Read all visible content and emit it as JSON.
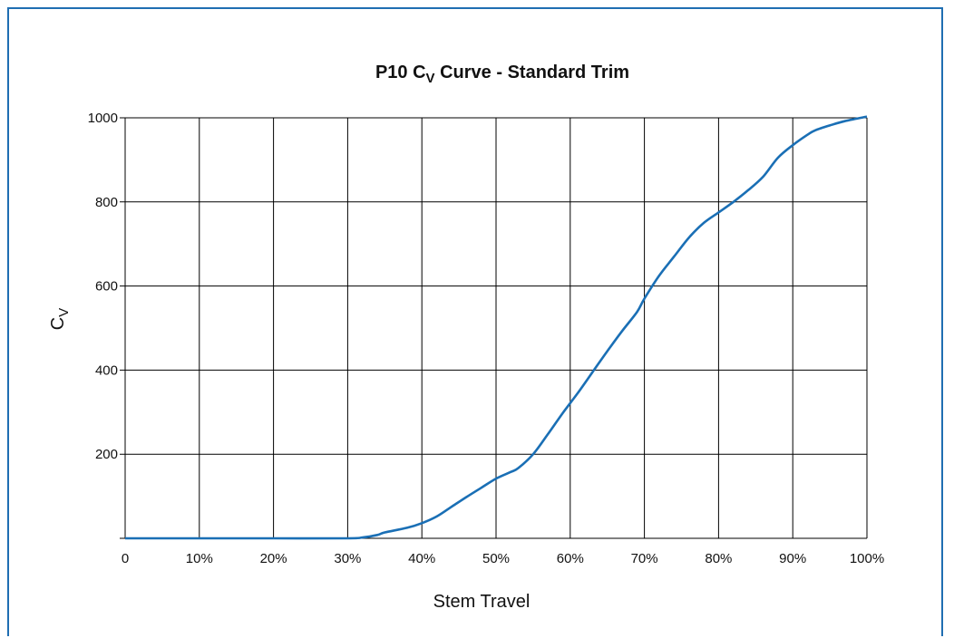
{
  "chart_data": {
    "type": "line",
    "title": "P10 C",
    "title_sub": "V",
    "title_rest": " Curve - Standard Trim",
    "xlabel": "Stem Travel",
    "ylabel": "C",
    "ylabel_sub": "V",
    "x_tick_labels": [
      "0",
      "10%",
      "20%",
      "30%",
      "40%",
      "50%",
      "60%",
      "70%",
      "80%",
      "90%",
      "100%"
    ],
    "y_tick_labels": [
      "200",
      "400",
      "600",
      "800",
      "1000"
    ],
    "xlim": [
      0,
      100
    ],
    "ylim": [
      0,
      1000
    ],
    "grid": true,
    "line_color": "#1a6fb5",
    "series": [
      {
        "x": [
          0,
          10,
          20,
          30,
          32,
          34,
          35,
          38,
          40,
          42,
          44,
          46,
          48,
          50,
          52,
          53,
          55,
          57,
          59,
          61,
          63,
          65,
          67,
          69,
          70,
          72,
          74,
          76,
          78,
          80,
          82,
          84,
          86,
          88,
          90,
          92,
          93,
          95,
          97,
          100
        ],
        "y": [
          0,
          0,
          0,
          0,
          2,
          8,
          14,
          25,
          36,
          52,
          75,
          98,
          120,
          142,
          158,
          167,
          200,
          248,
          298,
          345,
          395,
          445,
          493,
          538,
          570,
          625,
          670,
          715,
          750,
          775,
          800,
          828,
          860,
          905,
          935,
          960,
          970,
          982,
          992,
          1003
        ]
      }
    ]
  }
}
